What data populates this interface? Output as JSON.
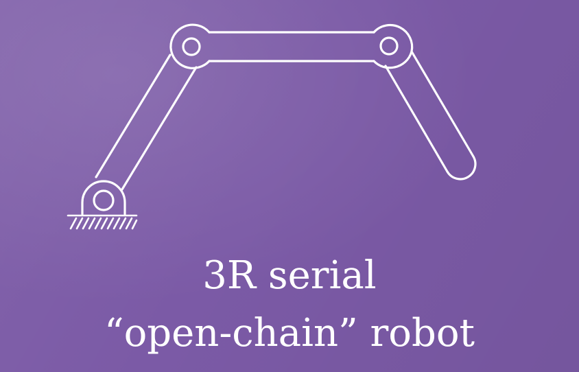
{
  "caption": {
    "line1": "3R serial",
    "line2": "“open-chain” robot"
  },
  "colors": {
    "background": "#7b5aa6",
    "stroke": "#ffffff"
  },
  "diagram": {
    "joints": [
      "base-revolute-joint",
      "elbow-revolute-joint-1",
      "elbow-revolute-joint-2"
    ],
    "links": [
      "link-1",
      "link-2",
      "link-3"
    ],
    "ground": "ground-hatch"
  }
}
